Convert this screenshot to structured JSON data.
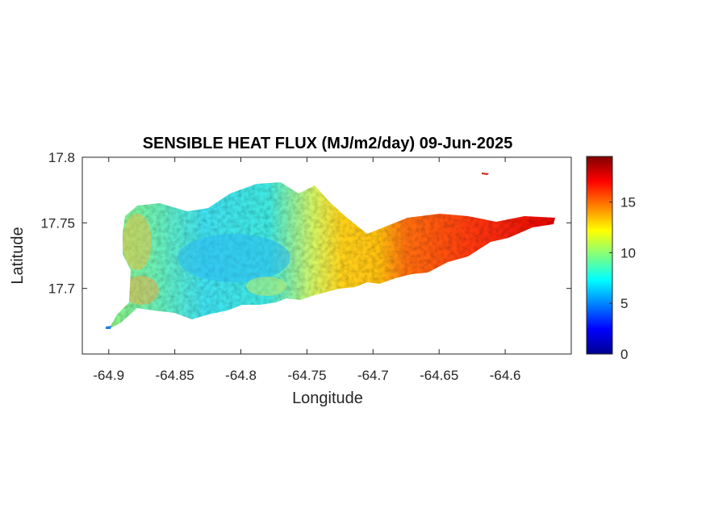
{
  "chart_data": {
    "type": "heatmap",
    "title": "SENSIBLE HEAT FLUX (MJ/m2/day) 09-Jun-2025",
    "xlabel": "Longitude",
    "ylabel": "Latitude",
    "xlim": [
      -64.92,
      -64.55
    ],
    "ylim": [
      17.65,
      17.8
    ],
    "x_ticks": [
      -64.9,
      -64.85,
      -64.8,
      -64.75,
      -64.7,
      -64.65,
      -64.6
    ],
    "x_tick_labels": [
      "-64.9",
      "-64.85",
      "-64.8",
      "-64.75",
      "-64.7",
      "-64.65",
      "-64.6"
    ],
    "y_ticks": [
      17.7,
      17.75,
      17.8
    ],
    "y_tick_labels": [
      "17.7",
      "17.75",
      "17.8"
    ],
    "colorbar": {
      "colormap": "jet",
      "range": [
        0,
        19.5
      ],
      "ticks": [
        0,
        5,
        10,
        15
      ],
      "tick_labels": [
        "0",
        "5",
        "10",
        "15"
      ]
    },
    "grid": false
  }
}
